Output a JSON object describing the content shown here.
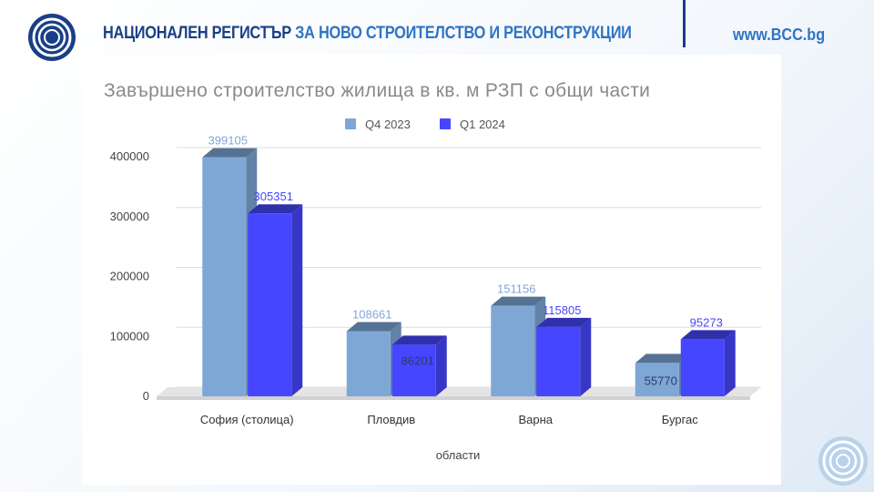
{
  "header": {
    "title_part1": "НАЦИОНАЛЕН РЕГИСТЪР",
    "title_part2": "ЗА НОВО СТРОИТЕЛСТВО И РЕКОНСТРУКЦИИ",
    "website": "www.BCC.bg"
  },
  "colors": {
    "brand_dark": "#1a3f86",
    "brand_light": "#2f74c4",
    "series_q4_2023": "#7fa7d6",
    "series_q1_2024": "#4646ff"
  },
  "chart_data": {
    "type": "bar",
    "title": "Завършено строителство жилища в кв. м РЗП с общи части",
    "xlabel": "области",
    "ylabel": "",
    "categories": [
      "София (столица)",
      "Пловдив",
      "Варна",
      "Бургас"
    ],
    "series": [
      {
        "name": "Q4 2023",
        "values": [
          399105,
          108661,
          151156,
          55770
        ]
      },
      {
        "name": "Q1 2024",
        "values": [
          305351,
          86201,
          115805,
          95273
        ]
      }
    ],
    "ylim": [
      0,
      400000
    ],
    "yticks": [
      0,
      100000,
      200000,
      300000,
      400000
    ],
    "legend_position": "top-center",
    "grid": true,
    "style": "3d"
  }
}
